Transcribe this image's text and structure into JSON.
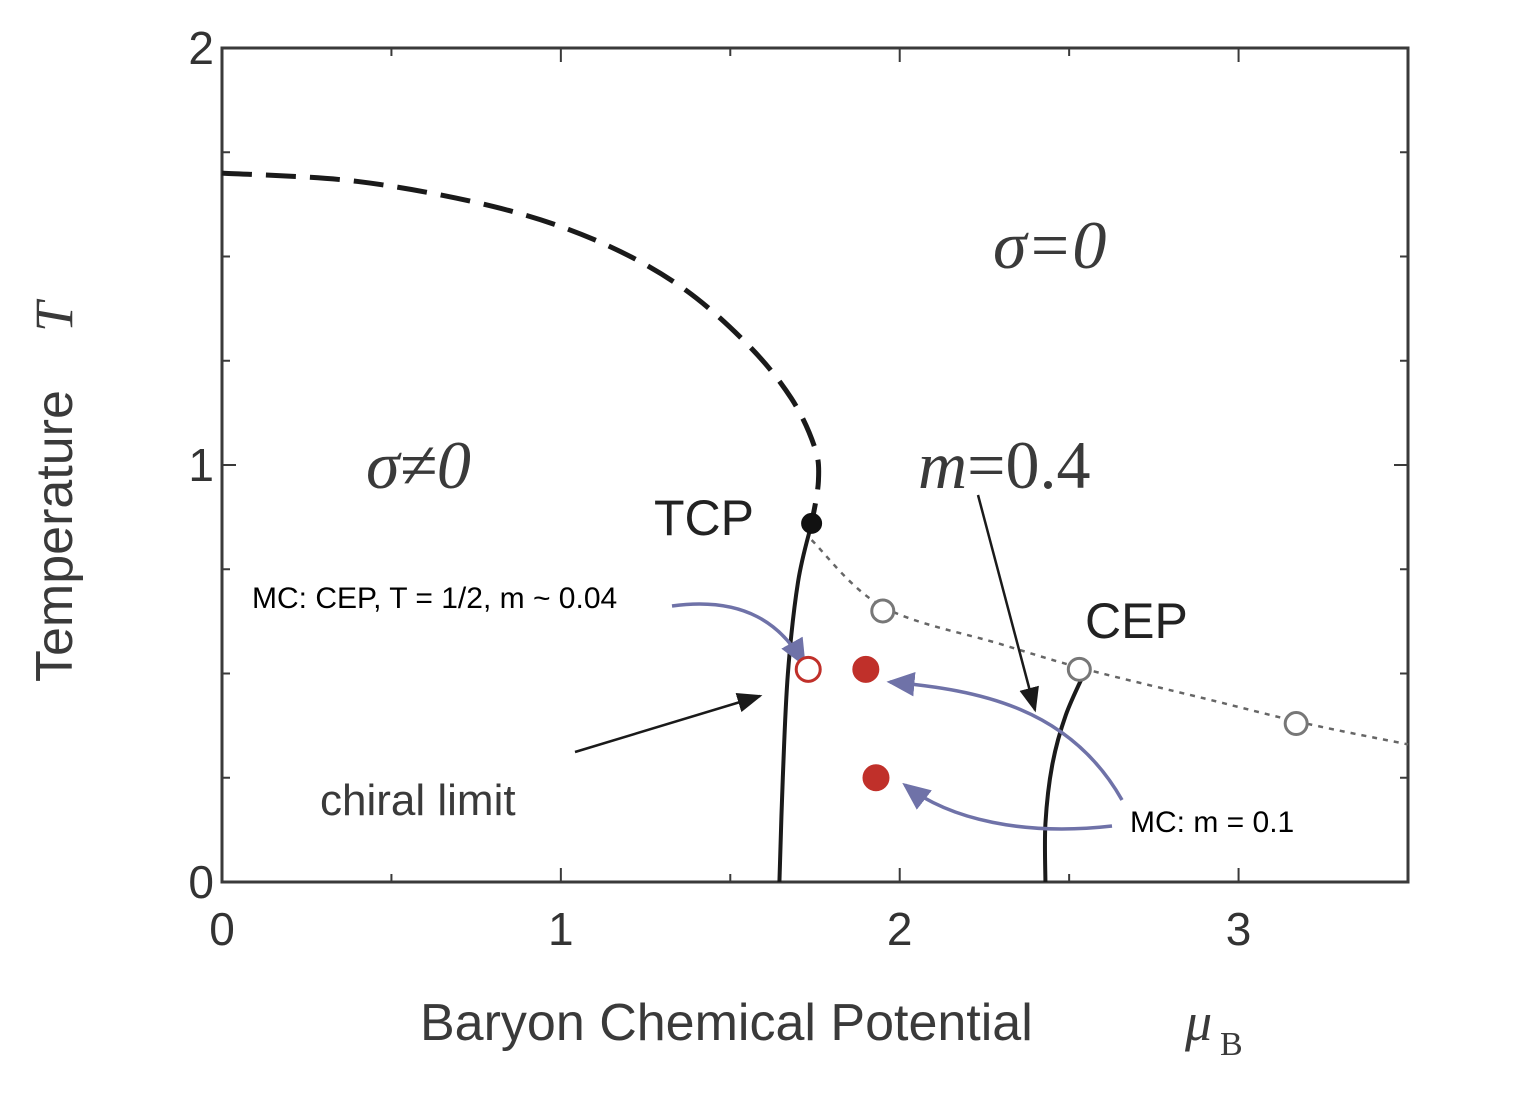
{
  "chart_data": {
    "type": "line",
    "xlabel": "Baryon Chemical Potential",
    "xlabel_symbol": "μ",
    "xlabel_subscript": "B",
    "ylabel": "Temperature",
    "ylabel_symbol": "T",
    "xlim": [
      0,
      3.5
    ],
    "ylim": [
      0,
      2
    ],
    "x_ticks": [
      "0",
      "1",
      "2",
      "3"
    ],
    "y_ticks": [
      "0",
      "1",
      "2"
    ],
    "grid": false,
    "series": [
      {
        "style": "dashed",
        "x": [
          0.0,
          0.4,
          0.8,
          1.1,
          1.35,
          1.55,
          1.68,
          1.75,
          1.76,
          1.74
        ],
        "y": [
          1.7,
          1.68,
          1.62,
          1.54,
          1.43,
          1.29,
          1.16,
          1.04,
          0.96,
          0.86
        ]
      },
      {
        "style": "solid",
        "x": [
          1.74,
          1.7,
          1.67,
          1.655,
          1.645
        ],
        "y": [
          0.86,
          0.72,
          0.5,
          0.25,
          0.0
        ]
      },
      {
        "style": "dotted",
        "x": [
          1.74,
          1.95,
          2.3,
          2.55,
          2.9,
          3.2,
          3.5
        ],
        "y": [
          0.82,
          0.66,
          0.57,
          0.51,
          0.44,
          0.38,
          0.33
        ]
      },
      {
        "style": "solid",
        "x": [
          2.55,
          2.49,
          2.45,
          2.43,
          2.43
        ],
        "y": [
          0.51,
          0.4,
          0.28,
          0.14,
          0.0
        ]
      }
    ],
    "points": [
      {
        "kind": "black-filled",
        "x": 1.74,
        "y": 0.86
      },
      {
        "kind": "grey-open",
        "x": 1.95,
        "y": 0.65
      },
      {
        "kind": "grey-open",
        "x": 2.53,
        "y": 0.51
      },
      {
        "kind": "grey-open",
        "x": 3.17,
        "y": 0.38
      },
      {
        "kind": "red-open",
        "x": 1.73,
        "y": 0.51
      },
      {
        "kind": "red-filled",
        "x": 1.9,
        "y": 0.51
      },
      {
        "kind": "red-filled",
        "x": 1.93,
        "y": 0.25
      }
    ],
    "labels": {
      "sigma_nonzero": "σ≠0",
      "sigma_zero": "σ=0",
      "m_value_sym": "m",
      "m_value_rest": "=0.4",
      "tcp": "TCP",
      "cep": "CEP",
      "chiral_limit": "chiral limit",
      "mc_cep": "MC: CEP, T = 1/2,  m ~ 0.04",
      "mc_m": "MC: m = 0.1"
    },
    "colors": {
      "curve": "#1a1a1a",
      "open_marker": "#777777",
      "red_marker": "#c0302a",
      "annotation_arrow": "#6f72a8"
    }
  }
}
